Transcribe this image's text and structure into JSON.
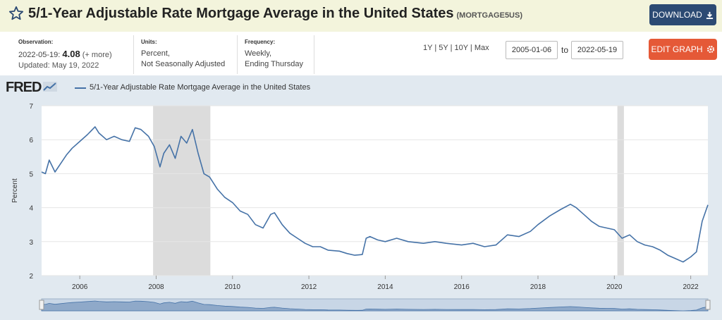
{
  "header": {
    "title": "5/1-Year Adjustable Rate Mortgage Average in the United States",
    "series_id": "(MORTGAGE5US)",
    "download_label": "DOWNLOAD"
  },
  "meta": {
    "observation_label": "Observation:",
    "observation_date": "2022-05-19:",
    "observation_value": "4.08",
    "observation_more": "(+ more)",
    "updated": "Updated: May 19, 2022",
    "units_label": "Units:",
    "units_line1": "Percent,",
    "units_line2": "Not Seasonally Adjusted",
    "frequency_label": "Frequency:",
    "frequency_line1": "Weekly,",
    "frequency_line2": "Ending Thursday"
  },
  "range": {
    "buttons": [
      "1Y",
      "5Y",
      "10Y",
      "Max"
    ],
    "start_date": "2005-01-06",
    "to_label": "to",
    "end_date": "2022-05-19"
  },
  "edit_label": "EDIT GRAPH",
  "fred_logo": "FRED",
  "colors": {
    "line": "#4572a7",
    "recession": "#dcdcdc",
    "download": "#2c4a73",
    "edit": "#e55937"
  },
  "chart_data": {
    "type": "line",
    "ylabel": "Percent",
    "ylim": [
      2,
      7
    ],
    "xlim": [
      2005.0,
      2022.45
    ],
    "yticks": [
      2,
      3,
      4,
      5,
      6,
      7
    ],
    "xticks": [
      2006,
      2008,
      2010,
      2012,
      2014,
      2016,
      2018,
      2020,
      2022
    ],
    "grid": true,
    "legend": "top-left",
    "recessions": [
      [
        2007.92,
        2009.42
      ],
      [
        2020.08,
        2020.25
      ]
    ],
    "series": [
      {
        "name": "5/1-Year Adjustable Rate Mortgage Average in the United States",
        "x": [
          2005.0,
          2005.1,
          2005.2,
          2005.35,
          2005.5,
          2005.65,
          2005.8,
          2006.0,
          2006.2,
          2006.4,
          2006.5,
          2006.7,
          2006.9,
          2007.1,
          2007.3,
          2007.45,
          2007.6,
          2007.8,
          2007.95,
          2008.1,
          2008.2,
          2008.35,
          2008.5,
          2008.65,
          2008.8,
          2008.95,
          2009.1,
          2009.25,
          2009.4,
          2009.6,
          2009.8,
          2010.0,
          2010.2,
          2010.4,
          2010.6,
          2010.8,
          2011.0,
          2011.1,
          2011.3,
          2011.5,
          2011.7,
          2011.9,
          2012.1,
          2012.3,
          2012.5,
          2012.8,
          2013.0,
          2013.2,
          2013.4,
          2013.5,
          2013.6,
          2013.8,
          2014.0,
          2014.3,
          2014.6,
          2015.0,
          2015.3,
          2015.6,
          2016.0,
          2016.3,
          2016.6,
          2016.9,
          2017.2,
          2017.5,
          2017.8,
          2018.0,
          2018.3,
          2018.6,
          2018.85,
          2019.0,
          2019.2,
          2019.4,
          2019.6,
          2019.8,
          2020.0,
          2020.2,
          2020.4,
          2020.6,
          2020.8,
          2021.0,
          2021.2,
          2021.4,
          2021.6,
          2021.8,
          2022.0,
          2022.15,
          2022.3,
          2022.45
        ],
        "values": [
          5.05,
          5.0,
          5.4,
          5.05,
          5.3,
          5.55,
          5.75,
          5.95,
          6.15,
          6.38,
          6.2,
          6.0,
          6.1,
          6.0,
          5.95,
          6.35,
          6.3,
          6.1,
          5.8,
          5.2,
          5.6,
          5.85,
          5.45,
          6.1,
          5.9,
          6.3,
          5.6,
          5.0,
          4.9,
          4.55,
          4.3,
          4.15,
          3.9,
          3.8,
          3.5,
          3.4,
          3.8,
          3.85,
          3.5,
          3.25,
          3.1,
          2.95,
          2.85,
          2.85,
          2.75,
          2.72,
          2.65,
          2.6,
          2.62,
          3.1,
          3.15,
          3.05,
          3.0,
          3.1,
          3.0,
          2.95,
          3.0,
          2.95,
          2.9,
          2.95,
          2.85,
          2.9,
          3.2,
          3.15,
          3.3,
          3.5,
          3.75,
          3.95,
          4.1,
          4.0,
          3.8,
          3.6,
          3.45,
          3.4,
          3.35,
          3.1,
          3.2,
          3.0,
          2.9,
          2.85,
          2.75,
          2.6,
          2.5,
          2.4,
          2.55,
          2.7,
          3.6,
          4.08
        ]
      }
    ]
  }
}
